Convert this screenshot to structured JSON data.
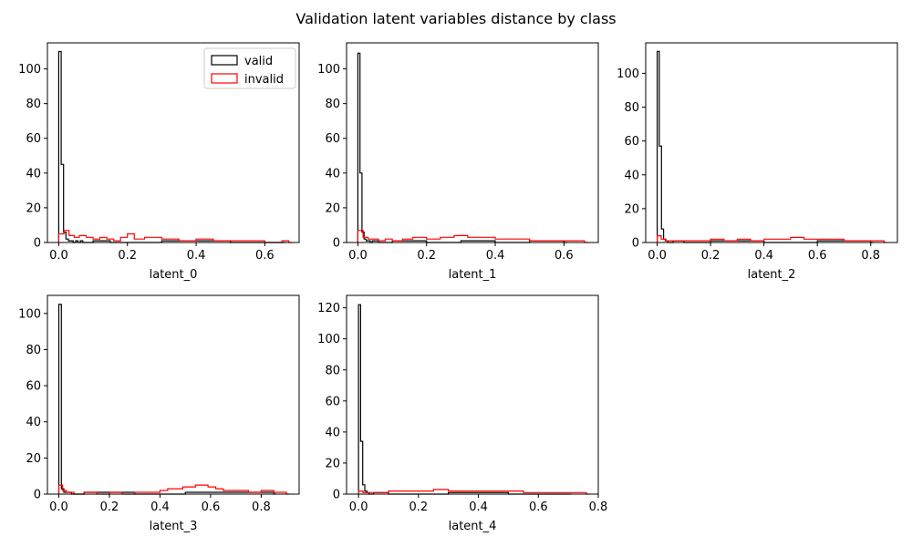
{
  "figure": {
    "title": "Validation latent variables distance by class"
  },
  "legend": {
    "placement": "top-right of first subplot",
    "entries": [
      {
        "label": "valid",
        "color": "#000000"
      },
      {
        "label": "invalid",
        "color": "#ff0000"
      }
    ]
  },
  "chart_data": [
    {
      "type": "histogram-step",
      "title": "",
      "xlabel": "latent_0",
      "ylabel": "",
      "xlim": [
        -0.033,
        0.7
      ],
      "ylim": [
        0,
        115
      ],
      "xticks": [
        0.0,
        0.2,
        0.4,
        0.6
      ],
      "xtick_labels": [
        "0.0",
        "0.2",
        "0.4",
        "0.6"
      ],
      "yticks": [
        0,
        20,
        40,
        60,
        80,
        100
      ],
      "ytick_labels": [
        "0",
        "20",
        "40",
        "60",
        "80",
        "100"
      ],
      "series": [
        {
          "name": "valid",
          "color": "#000000",
          "x": [
            0.0,
            0.007,
            0.014,
            0.021,
            0.028,
            0.035,
            0.042,
            0.049,
            0.056,
            0.063,
            0.07,
            0.1,
            0.15,
            0.3,
            0.5,
            0.65
          ],
          "y": [
            110,
            45,
            6,
            2,
            1,
            1,
            0,
            1,
            0,
            1,
            0,
            1,
            0,
            1,
            0,
            0
          ]
        },
        {
          "name": "invalid",
          "color": "#ff0000",
          "x": [
            0.0,
            0.015,
            0.03,
            0.045,
            0.06,
            0.08,
            0.1,
            0.12,
            0.14,
            0.16,
            0.18,
            0.2,
            0.22,
            0.25,
            0.3,
            0.35,
            0.4,
            0.45,
            0.5,
            0.55,
            0.6,
            0.65,
            0.67
          ],
          "y": [
            5,
            7,
            4,
            3,
            4,
            3,
            2,
            3,
            2,
            1,
            3,
            5,
            2,
            3,
            2,
            1,
            2,
            1,
            1,
            1,
            0,
            1,
            0
          ]
        }
      ]
    },
    {
      "type": "histogram-step",
      "title": "",
      "xlabel": "latent_1",
      "ylabel": "",
      "xlim": [
        -0.033,
        0.7
      ],
      "ylim": [
        0,
        115
      ],
      "xticks": [
        0.0,
        0.2,
        0.4,
        0.6
      ],
      "xtick_labels": [
        "0.0",
        "0.2",
        "0.4",
        "0.6"
      ],
      "yticks": [
        0,
        20,
        40,
        60,
        80,
        100
      ],
      "ytick_labels": [
        "0",
        "20",
        "40",
        "60",
        "80",
        "100"
      ],
      "series": [
        {
          "name": "valid",
          "color": "#000000",
          "x": [
            0.0,
            0.006,
            0.012,
            0.018,
            0.024,
            0.03,
            0.036,
            0.042,
            0.06,
            0.1,
            0.2,
            0.3,
            0.4,
            0.5,
            0.6
          ],
          "y": [
            109,
            40,
            6,
            2,
            1,
            1,
            0,
            1,
            0,
            1,
            0,
            1,
            0,
            1,
            0
          ]
        },
        {
          "name": "invalid",
          "color": "#ff0000",
          "x": [
            0.0,
            0.015,
            0.03,
            0.045,
            0.06,
            0.08,
            0.1,
            0.13,
            0.16,
            0.2,
            0.24,
            0.28,
            0.32,
            0.36,
            0.4,
            0.45,
            0.5,
            0.55,
            0.6,
            0.66
          ],
          "y": [
            7,
            3,
            2,
            2,
            1,
            2,
            1,
            2,
            3,
            2,
            3,
            4,
            3,
            3,
            2,
            2,
            1,
            1,
            1,
            0
          ]
        }
      ]
    },
    {
      "type": "histogram-step",
      "title": "",
      "xlabel": "latent_2",
      "ylabel": "",
      "xlim": [
        -0.043,
        0.9
      ],
      "ylim": [
        0,
        118
      ],
      "xticks": [
        0.0,
        0.2,
        0.4,
        0.6,
        0.8
      ],
      "xtick_labels": [
        "0.0",
        "0.2",
        "0.4",
        "0.6",
        "0.8"
      ],
      "yticks": [
        0,
        20,
        40,
        60,
        80,
        100
      ],
      "ytick_labels": [
        "0",
        "20",
        "40",
        "60",
        "80",
        "100"
      ],
      "series": [
        {
          "name": "valid",
          "color": "#000000",
          "x": [
            0.0,
            0.008,
            0.016,
            0.024,
            0.032,
            0.04,
            0.06,
            0.1,
            0.2,
            0.4,
            0.6,
            0.8
          ],
          "y": [
            113,
            57,
            8,
            2,
            1,
            0,
            1,
            0,
            1,
            0,
            1,
            0
          ]
        },
        {
          "name": "invalid",
          "color": "#ff0000",
          "x": [
            0.0,
            0.015,
            0.03,
            0.05,
            0.08,
            0.12,
            0.16,
            0.2,
            0.25,
            0.3,
            0.35,
            0.4,
            0.45,
            0.5,
            0.55,
            0.6,
            0.65,
            0.7,
            0.75,
            0.8,
            0.85
          ],
          "y": [
            4,
            2,
            1,
            1,
            1,
            1,
            1,
            2,
            1,
            2,
            1,
            2,
            2,
            3,
            2,
            2,
            2,
            1,
            1,
            1,
            0
          ]
        }
      ]
    },
    {
      "type": "histogram-step",
      "title": "",
      "xlabel": "latent_3",
      "ylabel": "",
      "xlim": [
        -0.045,
        0.95
      ],
      "ylim": [
        0,
        110
      ],
      "xticks": [
        0.0,
        0.2,
        0.4,
        0.6,
        0.8
      ],
      "xtick_labels": [
        "0.0",
        "0.2",
        "0.4",
        "0.6",
        "0.8"
      ],
      "yticks": [
        0,
        20,
        40,
        60,
        80,
        100
      ],
      "ytick_labels": [
        "0",
        "20",
        "40",
        "60",
        "80",
        "100"
      ],
      "series": [
        {
          "name": "valid",
          "color": "#000000",
          "x": [
            0.0,
            0.01,
            0.02,
            0.03,
            0.05,
            0.1,
            0.3,
            0.5,
            0.7,
            0.85
          ],
          "y": [
            105,
            3,
            1,
            1,
            0,
            1,
            0,
            1,
            1,
            0
          ]
        },
        {
          "name": "invalid",
          "color": "#ff0000",
          "x": [
            0.0,
            0.015,
            0.03,
            0.06,
            0.1,
            0.15,
            0.2,
            0.25,
            0.3,
            0.35,
            0.4,
            0.43,
            0.46,
            0.49,
            0.52,
            0.54,
            0.56,
            0.59,
            0.62,
            0.65,
            0.7,
            0.75,
            0.8,
            0.85,
            0.9
          ],
          "y": [
            5,
            2,
            1,
            0,
            1,
            0,
            1,
            0,
            1,
            1,
            2,
            3,
            3,
            4,
            4,
            5,
            5,
            4,
            3,
            2,
            2,
            1,
            2,
            1,
            0
          ]
        }
      ]
    },
    {
      "type": "histogram-step",
      "title": "",
      "xlabel": "latent_4",
      "ylabel": "",
      "xlim": [
        -0.04,
        0.8
      ],
      "ylim": [
        0,
        128
      ],
      "xticks": [
        0.0,
        0.2,
        0.4,
        0.6,
        0.8
      ],
      "xtick_labels": [
        "0.0",
        "0.2",
        "0.4",
        "0.6",
        "0.8"
      ],
      "yticks": [
        0,
        20,
        40,
        60,
        80,
        100,
        120
      ],
      "ytick_labels": [
        "0",
        "20",
        "40",
        "60",
        "80",
        "100",
        "120"
      ],
      "series": [
        {
          "name": "valid",
          "color": "#000000",
          "x": [
            0.0,
            0.007,
            0.014,
            0.021,
            0.028,
            0.035,
            0.05,
            0.1,
            0.3,
            0.5,
            0.7
          ],
          "y": [
            122,
            34,
            6,
            2,
            1,
            0,
            1,
            0,
            1,
            0,
            0
          ]
        },
        {
          "name": "invalid",
          "color": "#ff0000",
          "x": [
            0.0,
            0.015,
            0.03,
            0.06,
            0.1,
            0.15,
            0.2,
            0.25,
            0.3,
            0.35,
            0.4,
            0.45,
            0.5,
            0.55,
            0.6,
            0.65,
            0.7,
            0.76
          ],
          "y": [
            2,
            1,
            1,
            1,
            2,
            2,
            2,
            3,
            2,
            2,
            2,
            2,
            2,
            1,
            1,
            1,
            1,
            0
          ]
        }
      ]
    }
  ]
}
